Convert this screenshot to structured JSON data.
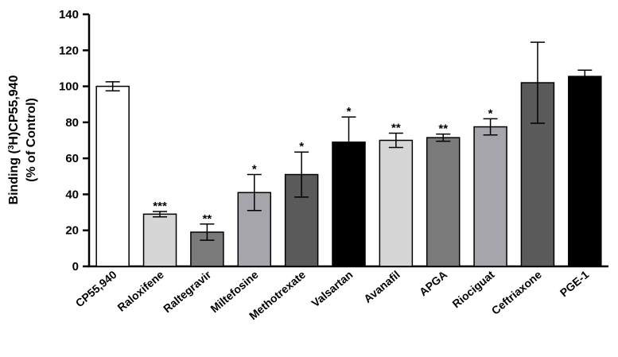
{
  "chart_data": {
    "type": "bar",
    "title": "",
    "xlabel": "",
    "ylabel_line1_pre": "Binding (",
    "ylabel_line1_sup": "3",
    "ylabel_line1_post": "H)CP55,940",
    "ylabel_line2": "(% of Control)",
    "ylim": [
      0,
      140
    ],
    "yticks": [
      0,
      20,
      40,
      60,
      80,
      100,
      120,
      140
    ],
    "grid": false,
    "bars": [
      {
        "category": "CP55,940",
        "value": 100,
        "error": 2.5,
        "significance": "",
        "color": "#ffffff"
      },
      {
        "category": "Raloxifene",
        "value": 29,
        "error": 1.5,
        "significance": "***",
        "color": "#d6d6d6"
      },
      {
        "category": "Raltegravir",
        "value": 19,
        "error": 4.5,
        "significance": "**",
        "color": "#7a7a7a"
      },
      {
        "category": "Miltefosine",
        "value": 41,
        "error": 10,
        "significance": "*",
        "color": "#a6a5ab"
      },
      {
        "category": "Methotrexate",
        "value": 51,
        "error": 12.5,
        "significance": "*",
        "color": "#5a5a5a"
      },
      {
        "category": "Valsartan",
        "value": 69,
        "error": 14,
        "significance": "*",
        "color": "#000000"
      },
      {
        "category": "Avanafil",
        "value": 70,
        "error": 4,
        "significance": "**",
        "color": "#d6d6d6"
      },
      {
        "category": "APGA",
        "value": 71.5,
        "error": 2,
        "significance": "**",
        "color": "#7a7a7a"
      },
      {
        "category": "Riociguat",
        "value": 77.5,
        "error": 4.5,
        "significance": "*",
        "color": "#a6a5ab"
      },
      {
        "category": "Ceftriaxone",
        "value": 102,
        "error": 22.5,
        "significance": "",
        "color": "#5a5a5a"
      },
      {
        "category": "PGE-1",
        "value": 105.5,
        "error": 3.5,
        "significance": "",
        "color": "#000000"
      }
    ]
  }
}
